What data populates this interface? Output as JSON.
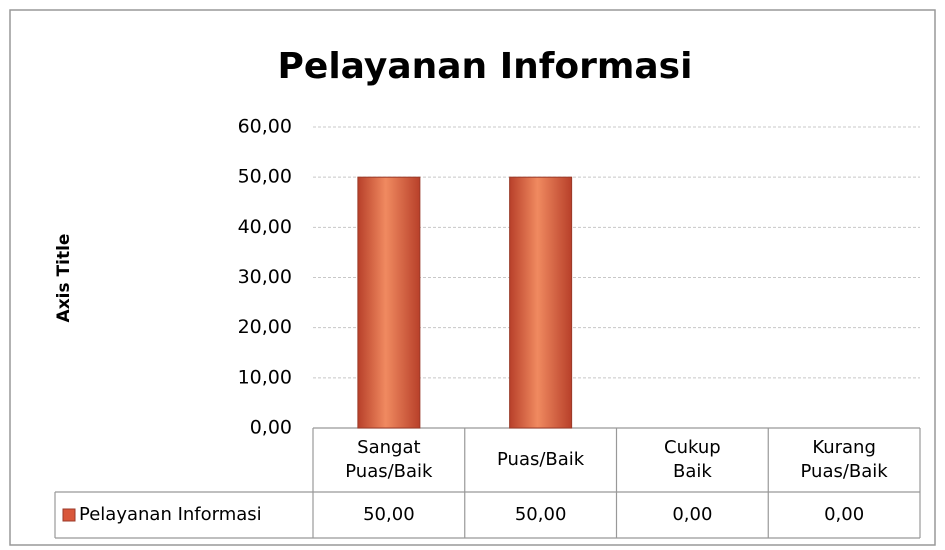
{
  "chart_data": {
    "type": "bar",
    "title": "Pelayanan Informasi",
    "y_axis_label": "Axis Title",
    "categories": [
      "Sangat\nPuas/Baik",
      "Puas/Baik",
      "Cukup\nBaik",
      "Kurang\nPuas/Baik"
    ],
    "series": [
      {
        "name": "Pelayanan Informasi",
        "color": "#d9573b",
        "values": [
          50,
          50,
          0,
          0
        ],
        "value_labels": [
          "50,00",
          "50,00",
          "0,00",
          "0,00"
        ]
      }
    ],
    "ylim": [
      0,
      60
    ],
    "yticks": [
      {
        "value": 0,
        "label": "0,00"
      },
      {
        "value": 10,
        "label": "10,00"
      },
      {
        "value": 20,
        "label": "20,00"
      },
      {
        "value": 30,
        "label": "30,00"
      },
      {
        "value": 40,
        "label": "40,00"
      },
      {
        "value": 50,
        "label": "50,00"
      },
      {
        "value": 60,
        "label": "60,00"
      }
    ],
    "grid": true,
    "legend": "data-table"
  }
}
